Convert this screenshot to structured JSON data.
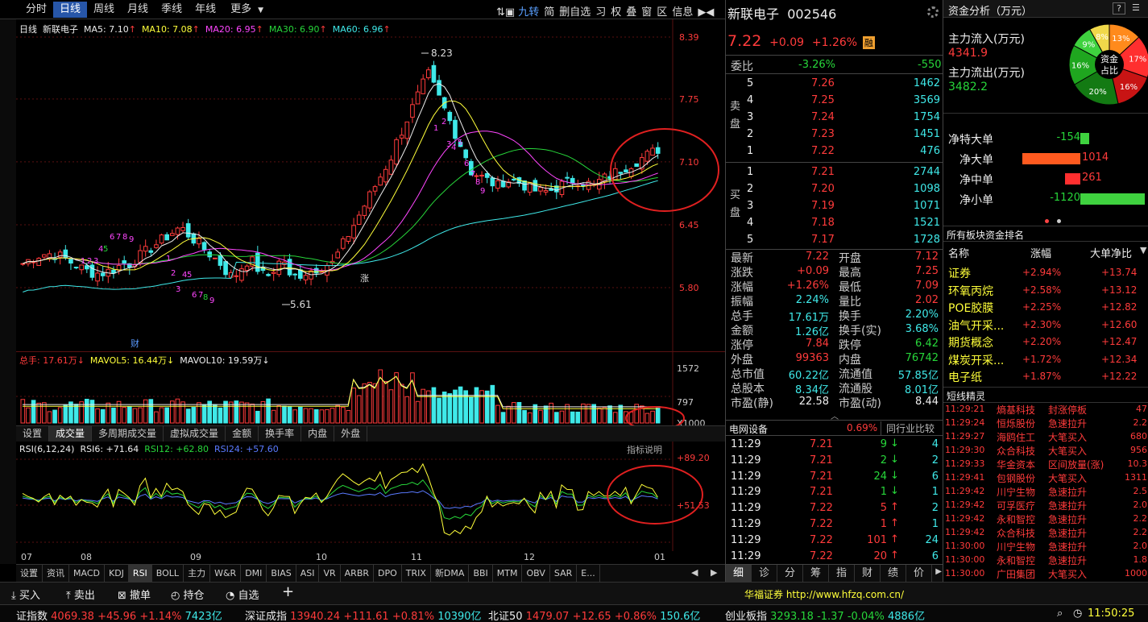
{
  "top_tabs": [
    "分时",
    "日线",
    "周线",
    "月线",
    "季线",
    "年线",
    "更多"
  ],
  "top_tools": [
    "九转",
    "简",
    "删自选",
    "习",
    "权",
    "叠",
    "窗",
    "区",
    "信息"
  ],
  "chart_header": {
    "label": "日线",
    "stock": "新联电子",
    "ma5": "MA5: 7.10",
    "ma10": "MA10: 7.08",
    "ma20": "MA20: 6.95",
    "ma30": "MA30: 6.90",
    "ma60": "MA60: 6.96"
  },
  "price_axis": [
    "8.39",
    "7.75",
    "7.10",
    "6.45",
    "5.80"
  ],
  "annotations": {
    "high": "8.23",
    "low": "5.61",
    "zhang": "涨",
    "cai": "财"
  },
  "volume_header": {
    "total": "总手: 17.61万",
    "mavol5": "MAVOL5: 16.44万",
    "mavol10": "MAVOL10: 19.59万"
  },
  "volume_axis": [
    "1572",
    "797",
    "X1000"
  ],
  "indicator_tabs": [
    "设置",
    "成交量",
    "多周期成交量",
    "虚拟成交量",
    "金额",
    "换手率",
    "内盘",
    "外盘"
  ],
  "rsi_header": {
    "name": "RSI(6,12,24)",
    "rsi6": "RSI6: +71.64",
    "rsi12": "RSI12: +62.80",
    "rsi24": "RSI24: +57.60"
  },
  "rsi_explain": "指标说明",
  "rsi_axis": [
    "+89.20",
    "+51.53"
  ],
  "date_axis": [
    "07",
    "08",
    "09",
    "10",
    "11",
    "12",
    "01"
  ],
  "bottom_indicators": [
    "设置",
    "资讯",
    "MACD",
    "KDJ",
    "RSI",
    "BOLL",
    "主力",
    "W&R",
    "DMI",
    "BIAS",
    "ASI",
    "VR",
    "ARBR",
    "DPO",
    "TRIX",
    "新DMA",
    "BBI",
    "MTM",
    "OBV",
    "SAR",
    "E..."
  ],
  "quote": {
    "name": "新联电子",
    "code": "002546",
    "price": "7.22",
    "change": "+0.09",
    "pct": "+1.26%",
    "badge": "融",
    "weibi_label": "委比",
    "weibi": "-3.26%",
    "weicha": "-550",
    "sell_label": "卖盘",
    "buy_label": "买盘",
    "sells": [
      {
        "lvl": "5",
        "p": "7.26",
        "v": "1462"
      },
      {
        "lvl": "4",
        "p": "7.25",
        "v": "3569"
      },
      {
        "lvl": "3",
        "p": "7.24",
        "v": "1754"
      },
      {
        "lvl": "2",
        "p": "7.23",
        "v": "1451"
      },
      {
        "lvl": "1",
        "p": "7.22",
        "v": "476"
      }
    ],
    "buys": [
      {
        "lvl": "1",
        "p": "7.21",
        "v": "2744"
      },
      {
        "lvl": "2",
        "p": "7.20",
        "v": "1098"
      },
      {
        "lvl": "3",
        "p": "7.19",
        "v": "1071"
      },
      {
        "lvl": "4",
        "p": "7.18",
        "v": "1521"
      },
      {
        "lvl": "5",
        "p": "7.17",
        "v": "1728"
      }
    ],
    "stats": [
      [
        "最新",
        "7.22",
        "开盘",
        "7.12"
      ],
      [
        "涨跌",
        "+0.09",
        "最高",
        "7.25"
      ],
      [
        "涨幅",
        "+1.26%",
        "最低",
        "7.09"
      ],
      [
        "振幅",
        "2.24%",
        "量比",
        "2.02"
      ],
      [
        "总手",
        "17.61万",
        "换手",
        "2.20%"
      ],
      [
        "金额",
        "1.26亿",
        "换手(实)",
        "3.68%"
      ],
      [
        "涨停",
        "7.84",
        "跌停",
        "6.42"
      ],
      [
        "外盘",
        "99363",
        "内盘",
        "76742"
      ],
      [
        "总市值",
        "60.22亿",
        "流通值",
        "57.85亿"
      ],
      [
        "总股本",
        "8.34亿",
        "流通股",
        "8.01亿"
      ],
      [
        "市盈(静)",
        "22.58",
        "市盈(动)",
        "8.44"
      ]
    ],
    "sector_name": "电网设备",
    "sector_pct": "0.69%",
    "sector_cmp": "同行业比较",
    "ticks": [
      [
        "11:29",
        "7.21",
        "9",
        "4"
      ],
      [
        "11:29",
        "7.21",
        "2",
        "2"
      ],
      [
        "11:29",
        "7.21",
        "24",
        "6"
      ],
      [
        "11:29",
        "7.21",
        "1",
        "1"
      ],
      [
        "11:29",
        "7.22",
        "5",
        "2"
      ],
      [
        "11:29",
        "7.22",
        "1",
        "1"
      ],
      [
        "11:29",
        "7.22",
        "101",
        "24"
      ],
      [
        "11:29",
        "7.22",
        "20",
        "6"
      ]
    ],
    "detail_tabs": [
      "细",
      "诊",
      "分",
      "筹",
      "指",
      "财",
      "绩",
      "价"
    ]
  },
  "funds": {
    "title": "资金分析（万元）",
    "help": "?",
    "inflow_label": "主力流入(万元)",
    "inflow": "4341.9",
    "outflow_label": "主力流出(万元)",
    "outflow": "3482.2",
    "pie_center": "资金占比",
    "pie": [
      {
        "v": 13,
        "c": "#ff8a1c"
      },
      {
        "v": 17,
        "c": "#ff2f2f"
      },
      {
        "v": 16,
        "c": "#c81414"
      },
      {
        "v": 20,
        "c": "#137a13"
      },
      {
        "v": 16,
        "c": "#1fa61f"
      },
      {
        "v": 9,
        "c": "#3fd23f"
      },
      {
        "v": 8,
        "c": "#f0d84a"
      }
    ],
    "net": [
      {
        "label": "净特大单",
        "val": "-154",
        "v": -154
      },
      {
        "label": "净大单",
        "val": "1014",
        "v": 1014
      },
      {
        "label": "净中单",
        "val": "261",
        "v": 261
      },
      {
        "label": "净小单",
        "val": "-1120",
        "v": -1120
      }
    ]
  },
  "sector_rank": {
    "title": "所有板块资金排名",
    "head": [
      "名称",
      "涨幅",
      "大单净比"
    ],
    "rows": [
      [
        "证券",
        "+2.94%",
        "+13.74"
      ],
      [
        "环氧丙烷",
        "+2.58%",
        "+13.12"
      ],
      [
        "POE胶膜",
        "+2.25%",
        "+12.82"
      ],
      [
        "油气开采...",
        "+2.30%",
        "+12.60"
      ],
      [
        "期货概念",
        "+2.20%",
        "+12.47"
      ],
      [
        "煤炭开采...",
        "+1.72%",
        "+12.34"
      ],
      [
        "电子纸",
        "+1.87%",
        "+12.22"
      ]
    ]
  },
  "short_news": {
    "title": "短线精灵",
    "rows": [
      [
        "11:29:21",
        "熵基科技",
        "封涨停板",
        "47"
      ],
      [
        "11:29:24",
        "恒烁股份",
        "急速拉升",
        "2.2"
      ],
      [
        "11:29:27",
        "海鸥住工",
        "大笔买入",
        "680"
      ],
      [
        "11:29:30",
        "众合科技",
        "大笔买入",
        "956"
      ],
      [
        "11:29:33",
        "华金资本",
        "区间放量(涨)",
        "10.3"
      ],
      [
        "11:29:41",
        "包钢股份",
        "大笔买入",
        "1311"
      ],
      [
        "11:29:42",
        "川宁生物",
        "急速拉升",
        "2.5"
      ],
      [
        "11:29:42",
        "可孚医疗",
        "急速拉升",
        "2.0"
      ],
      [
        "11:29:42",
        "永和智控",
        "急速拉升",
        "2.2"
      ],
      [
        "11:29:42",
        "众合科技",
        "急速拉升",
        "2.2"
      ],
      [
        "11:30:00",
        "川宁生物",
        "急速拉升",
        "2.0"
      ],
      [
        "11:30:00",
        "永和智控",
        "急速拉升",
        "1.8"
      ],
      [
        "11:30:00",
        "广田集团",
        "大笔买入",
        "1000"
      ]
    ]
  },
  "toolbar": {
    "buy": "买入",
    "sell": "卖出",
    "cancel": "撤单",
    "hold": "持仓",
    "fav": "自选",
    "broker": "华福证券 http://www.hfzq.com.cn/"
  },
  "index_bar": {
    "sh_label": "证指数",
    "sh": "4069.38",
    "sh_chg": "+45.96",
    "sh_pct": "+1.14%",
    "sh_amt": "7423亿",
    "sz_label": "深证成指",
    "sz": "13940.24",
    "sz_chg": "+111.61",
    "sz_pct": "+0.81%",
    "sz_amt": "10390亿",
    "bz_label": "北证50",
    "bz": "1479.07",
    "bz_chg": "+12.65",
    "bz_pct": "+0.86%",
    "bz_amt": "150.6亿",
    "cy_label": "创业板指",
    "cy": "3293.18",
    "cy_chg": "-1.37",
    "cy_pct": "-0.04%",
    "cy_amt": "4886亿",
    "clock": "11:50:25"
  }
}
